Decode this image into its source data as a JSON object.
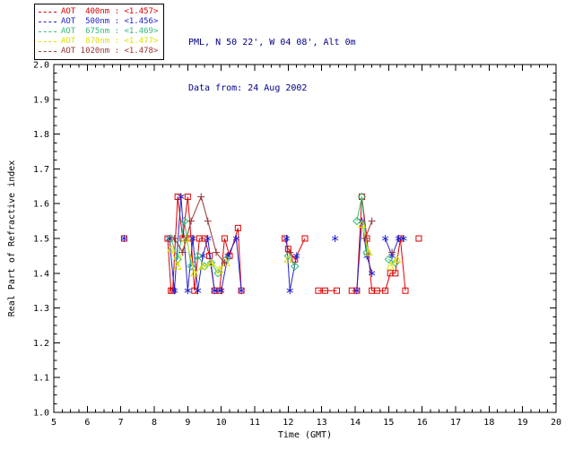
{
  "header": {
    "line1": "PML, N 50 22', W 04 08', Alt 0m",
    "line2": "Data from: 24 Aug 2002",
    "color": "#000088"
  },
  "chart_data": {
    "type": "line",
    "title": "",
    "xlabel": "Time (GMT)",
    "ylabel": "Real Part of Refractive index",
    "xlim": [
      5,
      20
    ],
    "ylim": [
      1.0,
      2.0
    ],
    "grid": false,
    "legend_position": "top-left-outside",
    "xticks": [
      5,
      6,
      7,
      8,
      9,
      10,
      11,
      12,
      13,
      14,
      15,
      16,
      17,
      18,
      19,
      20
    ],
    "xtick_labels": [
      "5",
      "6",
      "7",
      "8",
      "9",
      "10",
      "11",
      "12",
      "13",
      "14",
      "15",
      "16",
      "17",
      "18",
      "19",
      "20"
    ],
    "yticks": [
      1.0,
      1.1,
      1.2,
      1.3,
      1.4,
      1.5,
      1.6,
      1.7,
      1.8,
      1.9,
      2.0
    ],
    "ytick_labels": [
      "1.0",
      "1.1",
      "1.2",
      "1.3",
      "1.4",
      "1.5",
      "1.6",
      "1.7",
      "1.8",
      "1.9",
      "2.0"
    ],
    "gap_break_x": 0.35,
    "series": [
      {
        "name": "AOT 400nm",
        "legend_label": "AOT  400nm : <1.457>",
        "mean_value": "<1.457>",
        "color": "#dd0000",
        "marker": "square",
        "points": [
          [
            7.1,
            1.5
          ],
          [
            8.4,
            1.5
          ],
          [
            8.5,
            1.35
          ],
          [
            8.55,
            1.35
          ],
          [
            8.7,
            1.62
          ],
          [
            8.85,
            1.5
          ],
          [
            9.0,
            1.62
          ],
          [
            9.1,
            1.5
          ],
          [
            9.2,
            1.35
          ],
          [
            9.35,
            1.5
          ],
          [
            9.5,
            1.5
          ],
          [
            9.65,
            1.45
          ],
          [
            9.8,
            1.35
          ],
          [
            9.95,
            1.35
          ],
          [
            10.1,
            1.5
          ],
          [
            10.25,
            1.45
          ],
          [
            10.5,
            1.53
          ],
          [
            10.6,
            1.35
          ],
          [
            11.9,
            1.5
          ],
          [
            12.0,
            1.47
          ],
          [
            12.2,
            1.44
          ],
          [
            12.5,
            1.5
          ],
          [
            12.9,
            1.35
          ],
          [
            13.1,
            1.35
          ],
          [
            13.45,
            1.35
          ],
          [
            13.9,
            1.35
          ],
          [
            14.05,
            1.35
          ],
          [
            14.2,
            1.62
          ],
          [
            14.35,
            1.5
          ],
          [
            14.5,
            1.35
          ],
          [
            14.65,
            1.35
          ],
          [
            14.9,
            1.35
          ],
          [
            15.05,
            1.4
          ],
          [
            15.2,
            1.4
          ],
          [
            15.35,
            1.5
          ],
          [
            15.5,
            1.35
          ],
          [
            15.9,
            1.5
          ]
        ]
      },
      {
        "name": "AOT 500nm",
        "legend_label": "AOT  500nm : <1.456>",
        "mean_value": "<1.456>",
        "color": "#2222cc",
        "marker": "asterisk",
        "points": [
          [
            7.1,
            1.5
          ],
          [
            8.45,
            1.5
          ],
          [
            8.6,
            1.35
          ],
          [
            8.8,
            1.62
          ],
          [
            9.0,
            1.35
          ],
          [
            9.15,
            1.5
          ],
          [
            9.3,
            1.35
          ],
          [
            9.45,
            1.45
          ],
          [
            9.6,
            1.5
          ],
          [
            9.8,
            1.35
          ],
          [
            10.0,
            1.35
          ],
          [
            10.2,
            1.45
          ],
          [
            10.45,
            1.5
          ],
          [
            10.6,
            1.35
          ],
          [
            11.95,
            1.5
          ],
          [
            12.05,
            1.35
          ],
          [
            12.25,
            1.45
          ],
          [
            13.4,
            1.5
          ],
          [
            14.05,
            1.35
          ],
          [
            14.2,
            1.55
          ],
          [
            14.35,
            1.45
          ],
          [
            14.5,
            1.4
          ],
          [
            14.9,
            1.5
          ],
          [
            15.1,
            1.45
          ],
          [
            15.3,
            1.5
          ],
          [
            15.45,
            1.5
          ]
        ]
      },
      {
        "name": "AOT 675nm",
        "legend_label": "AOT  675nm : <1.469>",
        "mean_value": "<1.469>",
        "color": "#33bb77",
        "marker": "diamond",
        "points": [
          [
            8.5,
            1.5
          ],
          [
            8.7,
            1.44
          ],
          [
            8.9,
            1.55
          ],
          [
            9.1,
            1.42
          ],
          [
            9.3,
            1.45
          ],
          [
            9.5,
            1.42
          ],
          [
            9.7,
            1.43
          ],
          [
            9.9,
            1.4
          ],
          [
            10.15,
            1.44
          ],
          [
            12.0,
            1.45
          ],
          [
            12.2,
            1.42
          ],
          [
            14.05,
            1.55
          ],
          [
            14.2,
            1.62
          ],
          [
            14.35,
            1.46
          ],
          [
            15.0,
            1.44
          ],
          [
            15.2,
            1.43
          ]
        ]
      },
      {
        "name": "AOT 870nm",
        "legend_label": "AOT  870nm : <1.477>",
        "mean_value": "<1.477>",
        "color": "#e0e000",
        "marker": "triangle",
        "points": [
          [
            8.5,
            1.47
          ],
          [
            8.7,
            1.42
          ],
          [
            8.95,
            1.5
          ],
          [
            9.2,
            1.4
          ],
          [
            9.45,
            1.42
          ],
          [
            9.7,
            1.43
          ],
          [
            9.95,
            1.41
          ],
          [
            10.15,
            1.43
          ],
          [
            12.0,
            1.44
          ],
          [
            14.2,
            1.54
          ],
          [
            14.4,
            1.46
          ],
          [
            15.05,
            1.42
          ],
          [
            15.25,
            1.44
          ]
        ]
      },
      {
        "name": "AOT 1020nm",
        "legend_label": "AOT 1020nm : <1.478>",
        "mean_value": "<1.478>",
        "color": "#993333",
        "marker": "plus",
        "points": [
          [
            8.6,
            1.5
          ],
          [
            8.85,
            1.46
          ],
          [
            9.1,
            1.55
          ],
          [
            9.4,
            1.62
          ],
          [
            9.6,
            1.55
          ],
          [
            9.85,
            1.46
          ],
          [
            10.1,
            1.43
          ],
          [
            12.05,
            1.46
          ],
          [
            14.3,
            1.5
          ],
          [
            14.5,
            1.55
          ],
          [
            15.1,
            1.46
          ]
        ]
      }
    ]
  }
}
